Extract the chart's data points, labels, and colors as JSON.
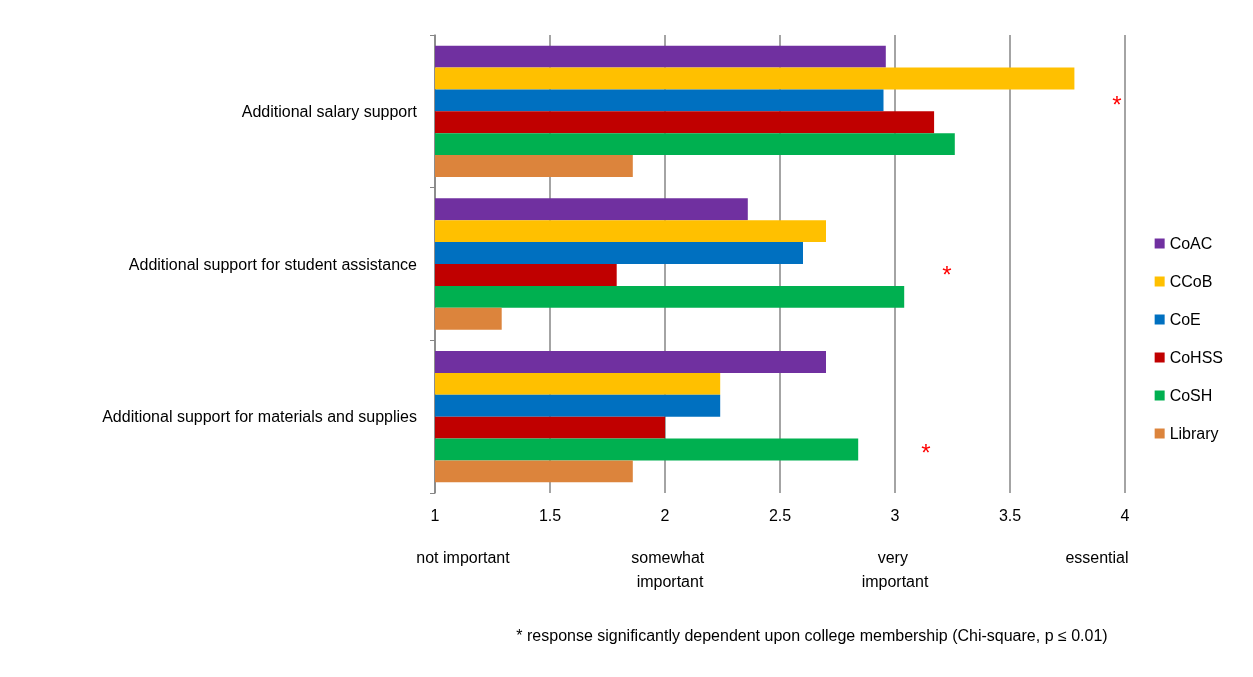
{
  "chart_data": {
    "type": "bar",
    "orientation": "horizontal",
    "categories": [
      "Additional salary support",
      "Additional support for student assistance",
      "Additional support for materials and supplies"
    ],
    "series": [
      {
        "name": "CoAC",
        "color": "#7030a0",
        "values": [
          2.96,
          2.36,
          2.7
        ]
      },
      {
        "name": "CCoB",
        "color": "#ffc000",
        "values": [
          3.78,
          2.7,
          2.24
        ]
      },
      {
        "name": "CoE",
        "color": "#0070c0",
        "values": [
          2.95,
          2.6,
          2.24
        ]
      },
      {
        "name": "CoHSS",
        "color": "#c00000",
        "values": [
          3.17,
          1.79,
          2.0
        ]
      },
      {
        "name": "CoSH",
        "color": "#00b050",
        "values": [
          3.26,
          3.04,
          2.84
        ]
      },
      {
        "name": "Library",
        "color": "#dc843c",
        "values": [
          1.86,
          1.29,
          1.86
        ]
      }
    ],
    "xlim": [
      1,
      4
    ],
    "xticks": [
      1,
      1.5,
      2,
      2.5,
      3,
      3.5,
      4
    ],
    "grid": "x",
    "legend": "right",
    "annotations": [
      "*",
      "*",
      "*",
      "not important",
      "somewhat important",
      "very important",
      "essential",
      "* response significantly dependent upon college membership (Chi-square, p ≤ 0.01)"
    ]
  }
}
